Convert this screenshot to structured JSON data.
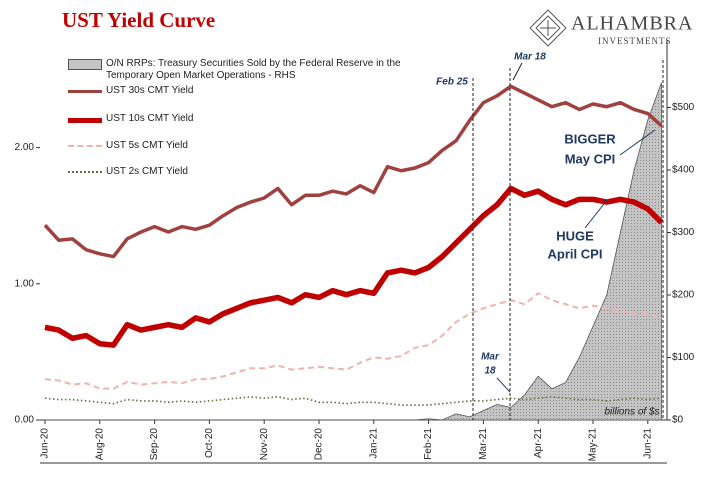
{
  "chart_data": {
    "type": "line",
    "title": "UST Yield Curve",
    "logo": {
      "name": "ALHAMBRA",
      "sub": "INVESTMENTS"
    },
    "categories": [
      "Jun-20",
      null,
      null,
      null,
      "Aug-20",
      null,
      null,
      null,
      "Sep-20",
      null,
      null,
      null,
      "Oct-20",
      null,
      null,
      null,
      "Nov-20",
      null,
      null,
      null,
      "Dec-20",
      null,
      null,
      null,
      "Jan-21",
      null,
      null,
      null,
      "Feb-21",
      null,
      null,
      null,
      "Mar-21",
      null,
      null,
      null,
      "Apr-21",
      null,
      null,
      null,
      "May-21",
      null,
      null,
      null,
      "Jun-21",
      null
    ],
    "series": [
      {
        "name": "O/N RRPs: Treasury Securities Sold by the Federal Reserve in the Temporary Open Market Operations - RHS",
        "type": "area",
        "axis": "y2",
        "color": "#c4c4c4",
        "values": [
          0,
          0,
          0,
          0,
          0,
          0,
          0,
          0,
          0,
          0,
          0,
          0,
          0,
          0,
          0,
          0,
          0,
          0,
          0,
          0,
          0,
          0,
          0,
          0,
          0,
          0,
          0,
          0,
          2,
          0,
          10,
          5,
          15,
          25,
          20,
          40,
          70,
          50,
          60,
          100,
          150,
          200,
          300,
          400,
          480,
          540
        ]
      },
      {
        "name": "UST 30s CMT Yield",
        "color": "#a0413f",
        "style": "solid",
        "values": [
          1.43,
          1.32,
          1.33,
          1.25,
          1.22,
          1.2,
          1.33,
          1.38,
          1.42,
          1.38,
          1.42,
          1.4,
          1.43,
          1.5,
          1.56,
          1.6,
          1.63,
          1.7,
          1.58,
          1.65,
          1.65,
          1.68,
          1.66,
          1.72,
          1.67,
          1.86,
          1.83,
          1.85,
          1.89,
          1.98,
          2.05,
          2.2,
          2.33,
          2.38,
          2.45,
          2.4,
          2.35,
          2.3,
          2.33,
          2.28,
          2.32,
          2.3,
          2.33,
          2.28,
          2.25,
          2.16
        ]
      },
      {
        "name": "UST 10s CMT Yield",
        "color": "#c00000",
        "style": "thick",
        "values": [
          0.68,
          0.66,
          0.6,
          0.62,
          0.56,
          0.55,
          0.7,
          0.66,
          0.68,
          0.7,
          0.68,
          0.75,
          0.72,
          0.78,
          0.82,
          0.86,
          0.88,
          0.9,
          0.86,
          0.92,
          0.9,
          0.95,
          0.92,
          0.95,
          0.93,
          1.08,
          1.1,
          1.08,
          1.12,
          1.2,
          1.3,
          1.4,
          1.5,
          1.58,
          1.7,
          1.65,
          1.68,
          1.62,
          1.58,
          1.62,
          1.62,
          1.6,
          1.62,
          1.6,
          1.55,
          1.45
        ]
      },
      {
        "name": "UST 5s CMT Yield",
        "color": "#f0b4ac",
        "style": "dashed",
        "values": [
          0.3,
          0.29,
          0.26,
          0.27,
          0.23,
          0.23,
          0.28,
          0.26,
          0.27,
          0.28,
          0.27,
          0.3,
          0.3,
          0.32,
          0.35,
          0.38,
          0.38,
          0.4,
          0.37,
          0.38,
          0.39,
          0.38,
          0.37,
          0.42,
          0.46,
          0.45,
          0.47,
          0.53,
          0.55,
          0.62,
          0.72,
          0.78,
          0.82,
          0.85,
          0.88,
          0.85,
          0.93,
          0.88,
          0.85,
          0.82,
          0.84,
          0.82,
          0.8,
          0.78,
          0.78,
          0.75
        ]
      },
      {
        "name": "UST 2s CMT Yield",
        "color": "#6b6b3b",
        "style": "dotted",
        "values": [
          0.16,
          0.15,
          0.15,
          0.14,
          0.13,
          0.12,
          0.15,
          0.14,
          0.14,
          0.13,
          0.14,
          0.13,
          0.14,
          0.15,
          0.16,
          0.17,
          0.16,
          0.17,
          0.15,
          0.16,
          0.13,
          0.13,
          0.12,
          0.13,
          0.13,
          0.12,
          0.11,
          0.11,
          0.11,
          0.12,
          0.13,
          0.14,
          0.14,
          0.15,
          0.16,
          0.15,
          0.16,
          0.17,
          0.16,
          0.15,
          0.15,
          0.14,
          0.15,
          0.16,
          0.15,
          0.16
        ]
      }
    ],
    "ylim": [
      0,
      2.79
    ],
    "yticks": [
      {
        "value": 0,
        "label": "0.00"
      },
      {
        "value": 1,
        "label": "1.00"
      },
      {
        "value": 2,
        "label": "2.00"
      }
    ],
    "y2lim": [
      0,
      608
    ],
    "y2ticks": [
      {
        "value": 0,
        "label": "$0"
      },
      {
        "value": 100,
        "label": "$100"
      },
      {
        "value": 200,
        "label": "$200"
      },
      {
        "value": 300,
        "label": "$300"
      },
      {
        "value": 400,
        "label": "$400"
      },
      {
        "value": 500,
        "label": "$500"
      }
    ],
    "annotations": {
      "feb25": "Feb 25",
      "mar18": "Mar 18",
      "mar18_low": [
        "Mar",
        "18"
      ],
      "bigger": [
        "BIGGER",
        "May CPI"
      ],
      "huge": [
        "HUGE",
        "April CPI"
      ],
      "units": "billions of $s"
    }
  }
}
